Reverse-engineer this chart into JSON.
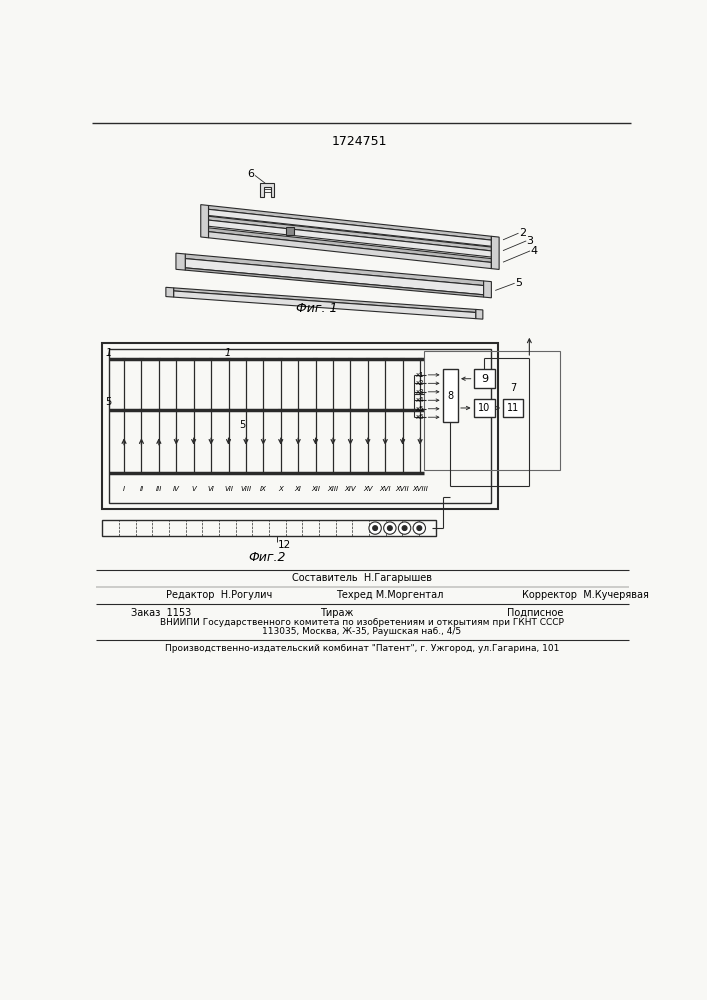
{
  "patent_number": "1724751",
  "fig1_caption": "Фиг. 1",
  "fig2_caption": "Фиг.2",
  "footer_sestavitel": "Составитель  Н.Гагарышев",
  "footer_redaktor": "Редактор  Н.Рогулич",
  "footer_tehred": "Техред М.Моргентал",
  "footer_korrektor": "Корректор  М.Кучерявая",
  "footer_zakaz": "Заказ  1153",
  "footer_tirazh": "Тираж",
  "footer_podpisnoe": "Подписное",
  "footer_vnipi": "ВНИИПИ Государственного комитета по изобретениям и открытиям при ГКНТ СССР",
  "footer_address": "113035, Москва, Ж-35, Раушская наб., 4/5",
  "footer_patent": "Производственно-издательский комбинат \"Патент\", г. Ужгород, ул.Гагарина, 101",
  "bg_color": "#f8f8f5",
  "line_color": "#2a2a2a",
  "roman_numerals": [
    "I",
    "II",
    "III",
    "IV",
    "V",
    "VI",
    "VII",
    "VIII",
    "IX",
    "X",
    "XI",
    "XII",
    "XIII",
    "XIV",
    "XV",
    "XVI",
    "XVII",
    "XVIII"
  ]
}
